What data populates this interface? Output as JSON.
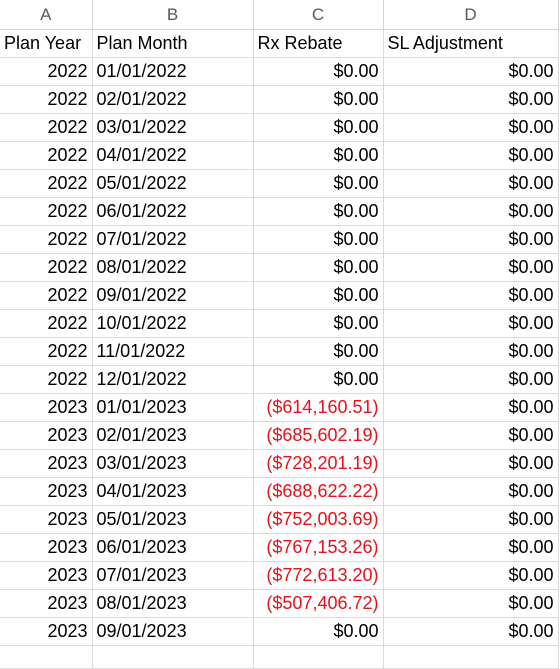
{
  "column_letters": [
    "A",
    "B",
    "C",
    "D"
  ],
  "header": {
    "plan_year": "Plan Year",
    "plan_month": "Plan Month",
    "rx_rebate": "Rx Rebate",
    "sl_adjustment": "SL Adjustment"
  },
  "rows": [
    {
      "year": "2022",
      "month": "01/01/2022",
      "rx": "$0.00",
      "sl": "$0.00",
      "rx_negative": false
    },
    {
      "year": "2022",
      "month": "02/01/2022",
      "rx": "$0.00",
      "sl": "$0.00",
      "rx_negative": false
    },
    {
      "year": "2022",
      "month": "03/01/2022",
      "rx": "$0.00",
      "sl": "$0.00",
      "rx_negative": false
    },
    {
      "year": "2022",
      "month": "04/01/2022",
      "rx": "$0.00",
      "sl": "$0.00",
      "rx_negative": false
    },
    {
      "year": "2022",
      "month": "05/01/2022",
      "rx": "$0.00",
      "sl": "$0.00",
      "rx_negative": false
    },
    {
      "year": "2022",
      "month": "06/01/2022",
      "rx": "$0.00",
      "sl": "$0.00",
      "rx_negative": false
    },
    {
      "year": "2022",
      "month": "07/01/2022",
      "rx": "$0.00",
      "sl": "$0.00",
      "rx_negative": false
    },
    {
      "year": "2022",
      "month": "08/01/2022",
      "rx": "$0.00",
      "sl": "$0.00",
      "rx_negative": false
    },
    {
      "year": "2022",
      "month": "09/01/2022",
      "rx": "$0.00",
      "sl": "$0.00",
      "rx_negative": false
    },
    {
      "year": "2022",
      "month": "10/01/2022",
      "rx": "$0.00",
      "sl": "$0.00",
      "rx_negative": false
    },
    {
      "year": "2022",
      "month": "11/01/2022",
      "rx": "$0.00",
      "sl": "$0.00",
      "rx_negative": false
    },
    {
      "year": "2022",
      "month": "12/01/2022",
      "rx": "$0.00",
      "sl": "$0.00",
      "rx_negative": false
    },
    {
      "year": "2023",
      "month": "01/01/2023",
      "rx": "($614,160.51)",
      "sl": "$0.00",
      "rx_negative": true
    },
    {
      "year": "2023",
      "month": "02/01/2023",
      "rx": "($685,602.19)",
      "sl": "$0.00",
      "rx_negative": true
    },
    {
      "year": "2023",
      "month": "03/01/2023",
      "rx": "($728,201.19)",
      "sl": "$0.00",
      "rx_negative": true
    },
    {
      "year": "2023",
      "month": "04/01/2023",
      "rx": "($688,622.22)",
      "sl": "$0.00",
      "rx_negative": true
    },
    {
      "year": "2023",
      "month": "05/01/2023",
      "rx": "($752,003.69)",
      "sl": "$0.00",
      "rx_negative": true
    },
    {
      "year": "2023",
      "month": "06/01/2023",
      "rx": "($767,153.26)",
      "sl": "$0.00",
      "rx_negative": true
    },
    {
      "year": "2023",
      "month": "07/01/2023",
      "rx": "($772,613.20)",
      "sl": "$0.00",
      "rx_negative": true
    },
    {
      "year": "2023",
      "month": "08/01/2023",
      "rx": "($507,406.72)",
      "sl": "$0.00",
      "rx_negative": true
    },
    {
      "year": "2023",
      "month": "09/01/2023",
      "rx": "$0.00",
      "sl": "$0.00",
      "rx_negative": false
    }
  ],
  "colors": {
    "negative_text": "#e8101a",
    "gridline": "#dadada",
    "column_header_text": "#595959"
  }
}
